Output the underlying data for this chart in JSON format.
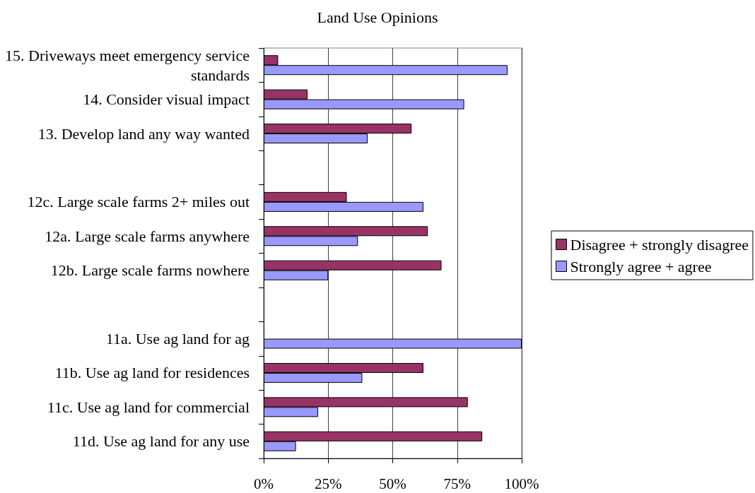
{
  "chart_data": {
    "type": "bar",
    "title": "Land Use Opinions",
    "orientation": "horizontal",
    "categories": [
      "15. Driveways meet emergency service standards",
      "14. Consider visual impact",
      "13. Develop land any way wanted",
      null,
      "12c. Large scale farms 2+ miles out",
      "12a. Large scale farms anywhere",
      "12b. Large scale farms nowhere",
      null,
      "11a. Use ag land for ag",
      "11b. Use ag land for residences",
      "11c. Use ag land for commercial",
      "11d. Use ag land for any use"
    ],
    "series": [
      {
        "name": "Disagree + strongly disagree",
        "color": "#993366",
        "values": [
          5.6,
          17,
          57.3,
          null,
          32.2,
          63.6,
          68.9,
          null,
          null,
          61.9,
          79.1,
          84.7
        ]
      },
      {
        "name": "Strongly agree + agree",
        "color": "#9999ff",
        "values": [
          94.5,
          77.7,
          40.3,
          null,
          61.9,
          36.5,
          25,
          null,
          100,
          38.2,
          21.1,
          12.5
        ]
      }
    ],
    "xlim": [
      0,
      100
    ],
    "xticks": [
      {
        "value": 0,
        "label": "0%"
      },
      {
        "value": 25,
        "label": "25%"
      },
      {
        "value": 50,
        "label": "50%"
      },
      {
        "value": 75,
        "label": "75%"
      },
      {
        "value": 100,
        "label": "100%"
      }
    ],
    "grid": "x",
    "legend": "right"
  }
}
